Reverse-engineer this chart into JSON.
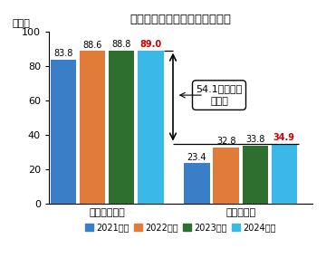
{
  "title": "損害保険に関する教育について",
  "ylabel": "（％）",
  "ylim": [
    0,
    100
  ],
  "yticks": [
    0,
    20,
    40,
    60,
    80,
    100
  ],
  "groups": [
    "必要性の認識",
    "教育の実施"
  ],
  "years": [
    "2021年度",
    "2022年度",
    "2023年度",
    "2024年度"
  ],
  "colors": [
    "#3a7ec8",
    "#e07b39",
    "#2e6e2e",
    "#3ab8e8"
  ],
  "values_group1": [
    83.8,
    88.6,
    88.8,
    89.0
  ],
  "values_group2": [
    23.4,
    32.8,
    33.8,
    34.9
  ],
  "highlight_color": "#cc0000",
  "annotation_text": "54.1ポイント\nの乖離",
  "bar_width": 0.17,
  "background_color": "#ffffff",
  "title_fontsize": 9.5,
  "label_fontsize": 8,
  "tick_fontsize": 8,
  "legend_fontsize": 7,
  "value_fontsize": 7
}
